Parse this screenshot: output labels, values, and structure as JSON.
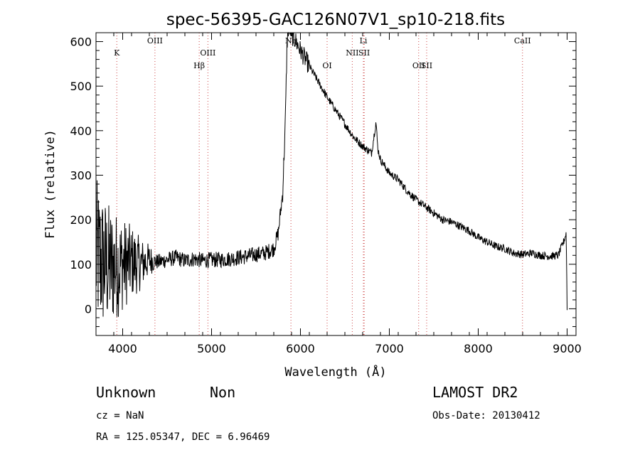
{
  "chart_data": {
    "type": "line",
    "title": "spec-56395-GAC126N07V1_sp10-218.fits",
    "xlabel": "Wavelength (Å)",
    "ylabel": "Flux (relative)",
    "xlim": [
      3700,
      9100
    ],
    "ylim": [
      -60,
      620
    ],
    "xticks": [
      4000,
      5000,
      6000,
      7000,
      8000,
      9000
    ],
    "xtick_labels": [
      "4000",
      "5000",
      "6000",
      "7000",
      "8000",
      "9000"
    ],
    "yticks": [
      0,
      100,
      200,
      300,
      400,
      500,
      600
    ],
    "ytick_labels": [
      "0",
      "100",
      "200",
      "300",
      "400",
      "500",
      "600"
    ],
    "grid": false,
    "series": [
      {
        "x": [
          3700,
          3800,
          3900,
          4000,
          4100,
          4200,
          4300,
          4400,
          4500,
          4600,
          4700,
          4800,
          4900,
          5000,
          5100,
          5200,
          5300,
          5400,
          5500,
          5600,
          5700,
          5750,
          5800,
          5830,
          5850,
          5870,
          5900,
          5950,
          6000,
          6100,
          6200,
          6300,
          6400,
          6500,
          6600,
          6700,
          6800,
          6850,
          6870,
          6900,
          7000,
          7100,
          7200,
          7300,
          7400,
          7500,
          7600,
          7700,
          7800,
          7900,
          8000,
          8100,
          8200,
          8300,
          8400,
          8500,
          8600,
          8700,
          8800,
          8900,
          8960,
          8990,
          9000
        ],
        "y": [
          120,
          100,
          95,
          100,
          105,
          100,
          110,
          105,
          110,
          115,
          108,
          112,
          108,
          110,
          110,
          112,
          115,
          118,
          122,
          125,
          135,
          170,
          260,
          420,
          600,
          640,
          615,
          600,
          580,
          545,
          510,
          475,
          445,
          415,
          385,
          365,
          350,
          420,
          360,
          335,
          305,
          290,
          265,
          245,
          230,
          215,
          200,
          195,
          185,
          175,
          160,
          150,
          140,
          135,
          125,
          122,
          125,
          120,
          118,
          120,
          150,
          170,
          0
        ],
        "noise_region": [
          3700,
          4350
        ]
      }
    ],
    "spectral_lines": [
      {
        "label": "K",
        "x": 3934,
        "row": 1
      },
      {
        "label": "OIII",
        "x": 4363,
        "row": 0
      },
      {
        "label": "Hβ",
        "x": 4861,
        "row": 2
      },
      {
        "label": "OIII",
        "x": 4959,
        "row": 1
      },
      {
        "label": "Na",
        "x": 5893,
        "row": 0
      },
      {
        "label": "OI",
        "x": 6300,
        "row": 2
      },
      {
        "label": "NII",
        "x": 6583,
        "row": 1
      },
      {
        "label": "Li",
        "x": 6708,
        "row": 0
      },
      {
        "label": "SII",
        "x": 6717,
        "row": 1
      },
      {
        "label": "OII",
        "x": 7330,
        "row": 2
      },
      {
        "label": "SII",
        "x": 7420,
        "row": 2
      },
      {
        "label": "CaII",
        "x": 8498,
        "row": 0
      }
    ]
  },
  "info": {
    "classification": "Unknown",
    "subclass": "Non",
    "cz": "cz = NaN",
    "coords": "RA = 125.05347, DEC =   6.96469",
    "survey": "LAMOST DR2",
    "obs_date": "Obs-Date: 20130412"
  },
  "colors": {
    "spectrum": "#000000",
    "line_marker": "#cc4444",
    "axes": "#000000"
  }
}
